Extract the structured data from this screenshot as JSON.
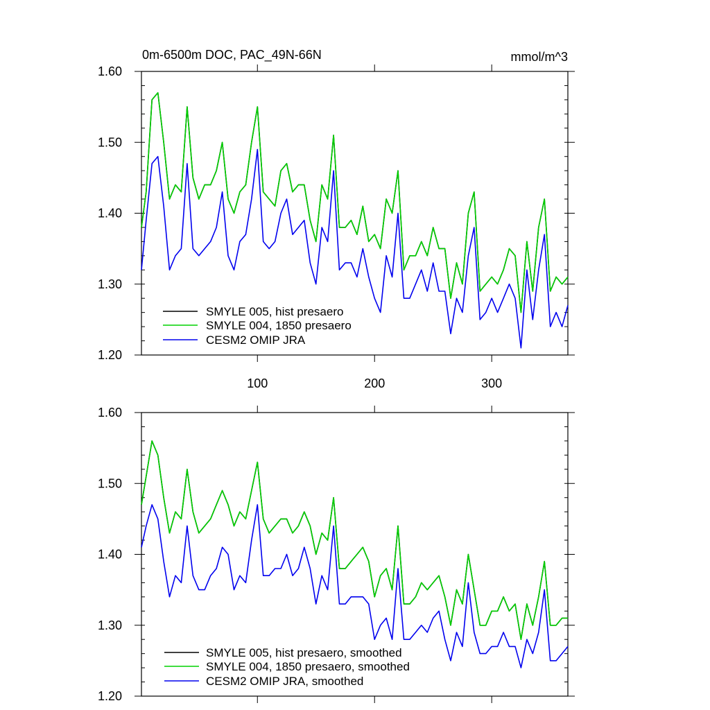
{
  "chart_data": [
    {
      "type": "line",
      "title": "0m-6500m DOC, PAC_49N-66N",
      "units": "mmol/m^3",
      "xlim": [
        1,
        365
      ],
      "ylim": [
        1.2,
        1.6
      ],
      "xticks": [
        100,
        200,
        300
      ],
      "yticks": [
        1.2,
        1.3,
        1.4,
        1.5,
        1.6
      ],
      "ytick_labels": [
        "1.20",
        "1.30",
        "1.40",
        "1.50",
        "1.60"
      ],
      "legend_position": "bottom-left",
      "series": [
        {
          "name": "SMYLE 005, hist presaero",
          "color": "#000000",
          "x": [
            1,
            5,
            10,
            15,
            20,
            25,
            30,
            35,
            40,
            45,
            50,
            55,
            60,
            65,
            70,
            75,
            80,
            85,
            90,
            95,
            100,
            105,
            110,
            115,
            120,
            125,
            130,
            135,
            140,
            145,
            150,
            155,
            160,
            165,
            170,
            175,
            180,
            185,
            190,
            195,
            200,
            205,
            210,
            215,
            220,
            225,
            230,
            235,
            240,
            245,
            250,
            255,
            260,
            265,
            270,
            275,
            280,
            285,
            290,
            295,
            300,
            305,
            310,
            315,
            320,
            325,
            330,
            335,
            340,
            345,
            350,
            355,
            360,
            365
          ],
          "y": [
            1.38,
            1.43,
            1.56,
            1.57,
            1.5,
            1.42,
            1.44,
            1.43,
            1.55,
            1.45,
            1.42,
            1.44,
            1.44,
            1.46,
            1.5,
            1.42,
            1.4,
            1.43,
            1.44,
            1.5,
            1.55,
            1.43,
            1.42,
            1.41,
            1.46,
            1.47,
            1.43,
            1.44,
            1.44,
            1.39,
            1.36,
            1.44,
            1.42,
            1.51,
            1.38,
            1.38,
            1.39,
            1.37,
            1.41,
            1.36,
            1.37,
            1.35,
            1.42,
            1.4,
            1.46,
            1.32,
            1.34,
            1.34,
            1.36,
            1.34,
            1.38,
            1.35,
            1.35,
            1.28,
            1.33,
            1.3,
            1.4,
            1.43,
            1.29,
            1.3,
            1.31,
            1.3,
            1.32,
            1.35,
            1.34,
            1.26,
            1.36,
            1.29,
            1.38,
            1.42,
            1.29,
            1.31,
            1.3,
            1.31
          ]
        },
        {
          "name": "SMYLE 004, 1850 presaero",
          "color": "#00d000",
          "x": [
            1,
            5,
            10,
            15,
            20,
            25,
            30,
            35,
            40,
            45,
            50,
            55,
            60,
            65,
            70,
            75,
            80,
            85,
            90,
            95,
            100,
            105,
            110,
            115,
            120,
            125,
            130,
            135,
            140,
            145,
            150,
            155,
            160,
            165,
            170,
            175,
            180,
            185,
            190,
            195,
            200,
            205,
            210,
            215,
            220,
            225,
            230,
            235,
            240,
            245,
            250,
            255,
            260,
            265,
            270,
            275,
            280,
            285,
            290,
            295,
            300,
            305,
            310,
            315,
            320,
            325,
            330,
            335,
            340,
            345,
            350,
            355,
            360,
            365
          ],
          "y": [
            1.38,
            1.43,
            1.56,
            1.57,
            1.5,
            1.42,
            1.44,
            1.43,
            1.55,
            1.45,
            1.42,
            1.44,
            1.44,
            1.46,
            1.5,
            1.42,
            1.4,
            1.43,
            1.44,
            1.5,
            1.55,
            1.43,
            1.42,
            1.41,
            1.46,
            1.47,
            1.43,
            1.44,
            1.44,
            1.39,
            1.36,
            1.44,
            1.42,
            1.51,
            1.38,
            1.38,
            1.39,
            1.37,
            1.41,
            1.36,
            1.37,
            1.35,
            1.42,
            1.4,
            1.46,
            1.32,
            1.34,
            1.34,
            1.36,
            1.34,
            1.38,
            1.35,
            1.35,
            1.28,
            1.33,
            1.3,
            1.4,
            1.43,
            1.29,
            1.3,
            1.31,
            1.3,
            1.32,
            1.35,
            1.34,
            1.26,
            1.36,
            1.29,
            1.38,
            1.42,
            1.29,
            1.31,
            1.3,
            1.31
          ]
        },
        {
          "name": "CESM2 OMIP JRA",
          "color": "#0000ee",
          "x": [
            1,
            5,
            10,
            15,
            20,
            25,
            30,
            35,
            40,
            45,
            50,
            55,
            60,
            65,
            70,
            75,
            80,
            85,
            90,
            95,
            100,
            105,
            110,
            115,
            120,
            125,
            130,
            135,
            140,
            145,
            150,
            155,
            160,
            165,
            170,
            175,
            180,
            185,
            190,
            195,
            200,
            205,
            210,
            215,
            220,
            225,
            230,
            235,
            240,
            245,
            250,
            255,
            260,
            265,
            270,
            275,
            280,
            285,
            290,
            295,
            300,
            305,
            310,
            315,
            320,
            325,
            330,
            335,
            340,
            345,
            350,
            355,
            360,
            365
          ],
          "y": [
            1.32,
            1.39,
            1.47,
            1.48,
            1.41,
            1.32,
            1.34,
            1.35,
            1.47,
            1.35,
            1.34,
            1.35,
            1.36,
            1.38,
            1.43,
            1.34,
            1.32,
            1.36,
            1.37,
            1.42,
            1.49,
            1.36,
            1.35,
            1.36,
            1.4,
            1.42,
            1.37,
            1.38,
            1.39,
            1.33,
            1.3,
            1.38,
            1.36,
            1.46,
            1.32,
            1.33,
            1.33,
            1.31,
            1.35,
            1.31,
            1.28,
            1.26,
            1.34,
            1.31,
            1.4,
            1.28,
            1.28,
            1.3,
            1.32,
            1.29,
            1.33,
            1.29,
            1.29,
            1.23,
            1.28,
            1.26,
            1.34,
            1.38,
            1.25,
            1.26,
            1.28,
            1.26,
            1.28,
            1.3,
            1.28,
            1.21,
            1.32,
            1.25,
            1.32,
            1.37,
            1.24,
            1.26,
            1.24,
            1.27
          ]
        }
      ]
    },
    {
      "type": "line",
      "title": "",
      "xlim": [
        1,
        365
      ],
      "ylim": [
        1.2,
        1.6
      ],
      "xticks": [
        100,
        200,
        300
      ],
      "yticks": [
        1.2,
        1.3,
        1.4,
        1.5,
        1.6
      ],
      "ytick_labels": [
        "1.20",
        "1.30",
        "1.40",
        "1.50",
        "1.60"
      ],
      "legend_position": "bottom-left",
      "series": [
        {
          "name": "SMYLE 005, hist presaero, smoothed",
          "color": "#000000",
          "x": [
            1,
            5,
            10,
            15,
            20,
            25,
            30,
            35,
            40,
            45,
            50,
            55,
            60,
            65,
            70,
            75,
            80,
            85,
            90,
            95,
            100,
            105,
            110,
            115,
            120,
            125,
            130,
            135,
            140,
            145,
            150,
            155,
            160,
            165,
            170,
            175,
            180,
            185,
            190,
            195,
            200,
            205,
            210,
            215,
            220,
            225,
            230,
            235,
            240,
            245,
            250,
            255,
            260,
            265,
            270,
            275,
            280,
            285,
            290,
            295,
            300,
            305,
            310,
            315,
            320,
            325,
            330,
            335,
            340,
            345,
            350,
            355,
            360,
            365
          ],
          "y": [
            1.47,
            1.51,
            1.56,
            1.54,
            1.48,
            1.43,
            1.46,
            1.45,
            1.52,
            1.46,
            1.43,
            1.44,
            1.45,
            1.47,
            1.49,
            1.47,
            1.44,
            1.46,
            1.45,
            1.49,
            1.53,
            1.45,
            1.43,
            1.44,
            1.45,
            1.45,
            1.43,
            1.44,
            1.46,
            1.44,
            1.4,
            1.43,
            1.42,
            1.48,
            1.38,
            1.38,
            1.39,
            1.4,
            1.41,
            1.39,
            1.34,
            1.37,
            1.38,
            1.35,
            1.44,
            1.33,
            1.33,
            1.34,
            1.36,
            1.35,
            1.36,
            1.37,
            1.34,
            1.3,
            1.35,
            1.33,
            1.4,
            1.35,
            1.3,
            1.3,
            1.32,
            1.32,
            1.34,
            1.32,
            1.33,
            1.28,
            1.33,
            1.3,
            1.34,
            1.39,
            1.3,
            1.3,
            1.31,
            1.31
          ]
        },
        {
          "name": "SMYLE 004, 1850 presaero, smoothed",
          "color": "#00d000",
          "x": [
            1,
            5,
            10,
            15,
            20,
            25,
            30,
            35,
            40,
            45,
            50,
            55,
            60,
            65,
            70,
            75,
            80,
            85,
            90,
            95,
            100,
            105,
            110,
            115,
            120,
            125,
            130,
            135,
            140,
            145,
            150,
            155,
            160,
            165,
            170,
            175,
            180,
            185,
            190,
            195,
            200,
            205,
            210,
            215,
            220,
            225,
            230,
            235,
            240,
            245,
            250,
            255,
            260,
            265,
            270,
            275,
            280,
            285,
            290,
            295,
            300,
            305,
            310,
            315,
            320,
            325,
            330,
            335,
            340,
            345,
            350,
            355,
            360,
            365
          ],
          "y": [
            1.47,
            1.51,
            1.56,
            1.54,
            1.48,
            1.43,
            1.46,
            1.45,
            1.52,
            1.46,
            1.43,
            1.44,
            1.45,
            1.47,
            1.49,
            1.47,
            1.44,
            1.46,
            1.45,
            1.49,
            1.53,
            1.45,
            1.43,
            1.44,
            1.45,
            1.45,
            1.43,
            1.44,
            1.46,
            1.44,
            1.4,
            1.43,
            1.42,
            1.48,
            1.38,
            1.38,
            1.39,
            1.4,
            1.41,
            1.39,
            1.34,
            1.37,
            1.38,
            1.35,
            1.44,
            1.33,
            1.33,
            1.34,
            1.36,
            1.35,
            1.36,
            1.37,
            1.34,
            1.3,
            1.35,
            1.33,
            1.4,
            1.35,
            1.3,
            1.3,
            1.32,
            1.32,
            1.34,
            1.32,
            1.33,
            1.28,
            1.33,
            1.3,
            1.34,
            1.39,
            1.3,
            1.3,
            1.31,
            1.31
          ]
        },
        {
          "name": "CESM2 OMIP JRA, smoothed",
          "color": "#0000ee",
          "x": [
            1,
            5,
            10,
            15,
            20,
            25,
            30,
            35,
            40,
            45,
            50,
            55,
            60,
            65,
            70,
            75,
            80,
            85,
            90,
            95,
            100,
            105,
            110,
            115,
            120,
            125,
            130,
            135,
            140,
            145,
            150,
            155,
            160,
            165,
            170,
            175,
            180,
            185,
            190,
            195,
            200,
            205,
            210,
            215,
            220,
            225,
            230,
            235,
            240,
            245,
            250,
            255,
            260,
            265,
            270,
            275,
            280,
            285,
            290,
            295,
            300,
            305,
            310,
            315,
            320,
            325,
            330,
            335,
            340,
            345,
            350,
            355,
            360,
            365
          ],
          "y": [
            1.41,
            1.44,
            1.47,
            1.45,
            1.39,
            1.34,
            1.37,
            1.36,
            1.44,
            1.37,
            1.35,
            1.35,
            1.37,
            1.38,
            1.41,
            1.4,
            1.35,
            1.37,
            1.36,
            1.42,
            1.47,
            1.37,
            1.37,
            1.38,
            1.38,
            1.4,
            1.37,
            1.38,
            1.41,
            1.38,
            1.33,
            1.37,
            1.35,
            1.44,
            1.33,
            1.33,
            1.34,
            1.34,
            1.34,
            1.33,
            1.28,
            1.3,
            1.31,
            1.28,
            1.38,
            1.28,
            1.28,
            1.29,
            1.3,
            1.29,
            1.31,
            1.32,
            1.28,
            1.25,
            1.29,
            1.27,
            1.36,
            1.29,
            1.26,
            1.26,
            1.27,
            1.27,
            1.29,
            1.27,
            1.27,
            1.24,
            1.28,
            1.26,
            1.29,
            1.35,
            1.25,
            1.25,
            1.26,
            1.27
          ]
        }
      ]
    }
  ]
}
